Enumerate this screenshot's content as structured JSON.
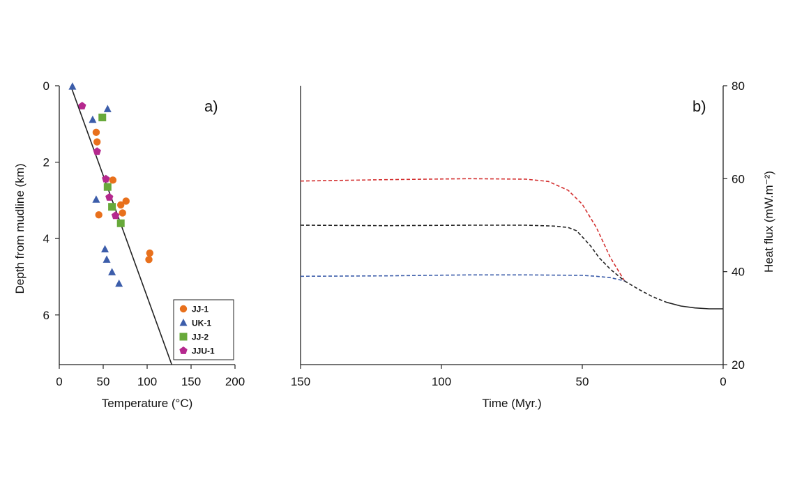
{
  "chart_data": [
    {
      "panel_label": "a)",
      "type": "scatter",
      "xlabel": "Temperature (°C)",
      "ylabel": "Depth from mudline (km)",
      "xlim": [
        0,
        200
      ],
      "ylim": [
        0,
        7.3
      ],
      "y_inverted": true,
      "xticks": [
        "0",
        "50",
        "100",
        "150",
        "200"
      ],
      "yticks": [
        "0",
        "2",
        "4",
        "6"
      ],
      "legend_position": "bottom-right",
      "grid": false,
      "series": [
        {
          "name": "JJ-1",
          "marker": "circle",
          "color": "#E8701C",
          "points": [
            [
              42,
              1.22
            ],
            [
              43,
              1.47
            ],
            [
              61,
              2.47
            ],
            [
              45,
              3.38
            ],
            [
              70,
              3.12
            ],
            [
              76,
              3.02
            ],
            [
              72,
              3.33
            ],
            [
              103,
              4.38
            ],
            [
              102,
              4.55
            ]
          ]
        },
        {
          "name": "UK-1",
          "marker": "triangle",
          "color": "#3C5DAA",
          "points": [
            [
              15,
              0.02
            ],
            [
              55,
              0.61
            ],
            [
              38,
              0.89
            ],
            [
              42,
              2.98
            ],
            [
              52,
              4.28
            ],
            [
              54,
              4.55
            ],
            [
              60,
              4.88
            ],
            [
              68,
              5.18
            ]
          ]
        },
        {
          "name": "JJ-2",
          "marker": "square",
          "color": "#67A93A",
          "points": [
            [
              49,
              0.83
            ],
            [
              55,
              2.65
            ],
            [
              60,
              3.17
            ],
            [
              70,
              3.6
            ]
          ]
        },
        {
          "name": "JJU-1",
          "marker": "pentagon",
          "color": "#B5288E",
          "points": [
            [
              26,
              0.53
            ],
            [
              43,
              1.72
            ],
            [
              53,
              2.44
            ],
            [
              57,
              2.92
            ],
            [
              64,
              3.4
            ]
          ]
        }
      ],
      "trend_line": {
        "color": "#222222",
        "x": [
          13,
          128
        ],
        "y": [
          0,
          7.3
        ]
      }
    },
    {
      "panel_label": "b)",
      "type": "line",
      "xlabel": "Time (Myr.)",
      "ylabel": "Heat flux (mW.m⁻²)",
      "xlim": [
        150,
        0
      ],
      "ylim": [
        20,
        80
      ],
      "xticks": [
        "150",
        "100",
        "50",
        "0"
      ],
      "yticks": [
        "20",
        "40",
        "60",
        "80"
      ],
      "grid": false,
      "series": [
        {
          "color": "#D32F2F",
          "dashed": true,
          "x": [
            150,
            120,
            90,
            70,
            62,
            55,
            50,
            45,
            40,
            35
          ],
          "y": [
            59.5,
            59.8,
            60,
            59.9,
            59.4,
            57.5,
            54.5,
            49.5,
            43,
            38
          ]
        },
        {
          "color": "#222222",
          "dashed": true,
          "x": [
            150,
            120,
            90,
            70,
            60,
            55,
            52,
            50,
            47,
            44,
            40,
            35
          ],
          "y": [
            50,
            49.9,
            50,
            50,
            49.8,
            49.5,
            48.8,
            47.5,
            45.5,
            43,
            40.5,
            38
          ]
        },
        {
          "color": "#3C5DAA",
          "dashed": true,
          "x": [
            150,
            120,
            90,
            70,
            50,
            45,
            40,
            35
          ],
          "y": [
            39,
            39.1,
            39.3,
            39.3,
            39.2,
            39,
            38.7,
            38
          ]
        },
        {
          "color": "#222222",
          "dashed": true,
          "x": [
            35,
            30,
            25,
            20
          ],
          "y": [
            38,
            36.2,
            34.6,
            33.4
          ]
        },
        {
          "color": "#222222",
          "dashed": false,
          "x": [
            20,
            15,
            10,
            5,
            0
          ],
          "y": [
            33.4,
            32.6,
            32.2,
            32,
            32
          ]
        }
      ]
    }
  ]
}
